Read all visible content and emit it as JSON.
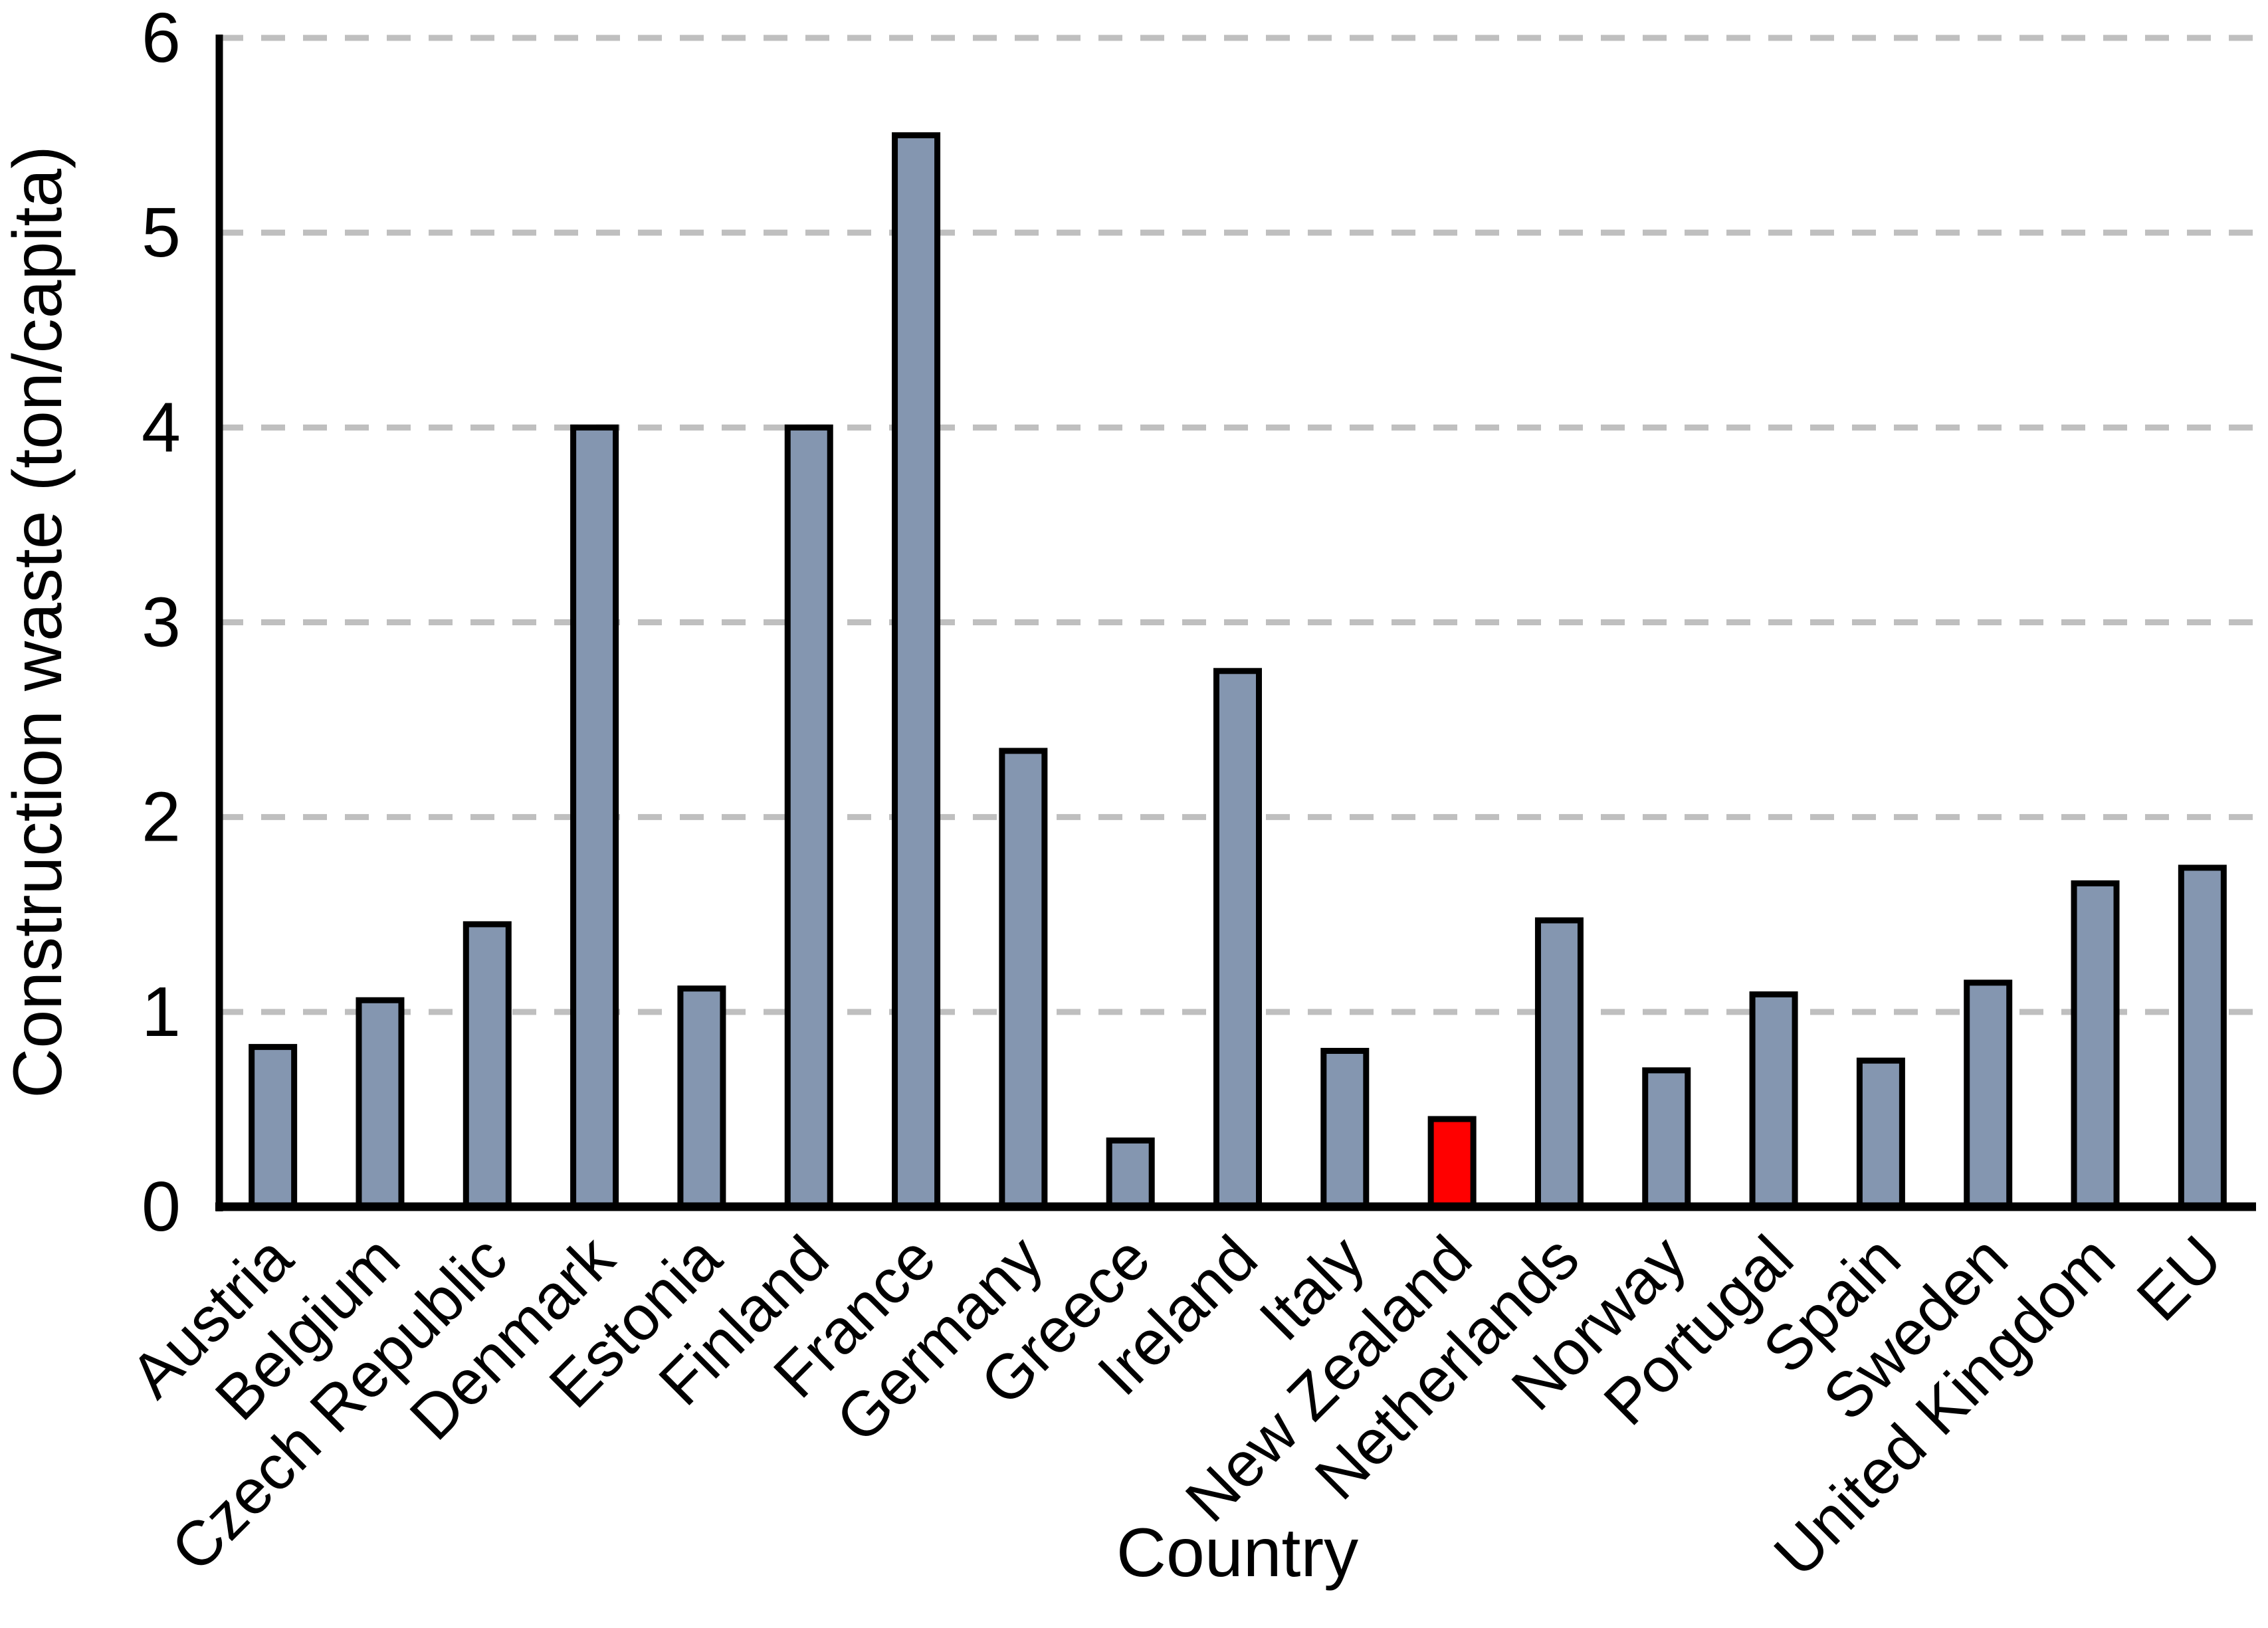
{
  "chart_data": {
    "type": "bar",
    "title": "",
    "xlabel": "Country",
    "ylabel": "Construction waste (ton/capita)",
    "categories": [
      "Austria",
      "Belgium",
      "Czech Republic",
      "Denmark",
      "Estonia",
      "Finland",
      "France",
      "Germany",
      "Greece",
      "Ireland",
      "Italy",
      "New Zealand",
      "Netherlands",
      "Norway",
      "Portugal",
      "Spain",
      "Sweden",
      "United Kingdom",
      "EU"
    ],
    "values": [
      0.82,
      1.06,
      1.45,
      4.0,
      1.12,
      4.0,
      5.5,
      2.34,
      0.34,
      2.75,
      0.8,
      0.45,
      1.47,
      0.7,
      1.09,
      0.75,
      1.15,
      1.66,
      1.74
    ],
    "highlighted_category": "New Zealand",
    "colors": {
      "bar_default": "#8496B0",
      "bar_highlight": "#FF0000",
      "bar_outline": "#000000",
      "gridline": "#BFBFBF",
      "axis": "#000000"
    },
    "ylim": [
      0,
      6
    ],
    "yticks": [
      0,
      1,
      2,
      3,
      4,
      5,
      6
    ],
    "grid": {
      "horizontal": true,
      "style": "dashed"
    },
    "legend": "none"
  }
}
